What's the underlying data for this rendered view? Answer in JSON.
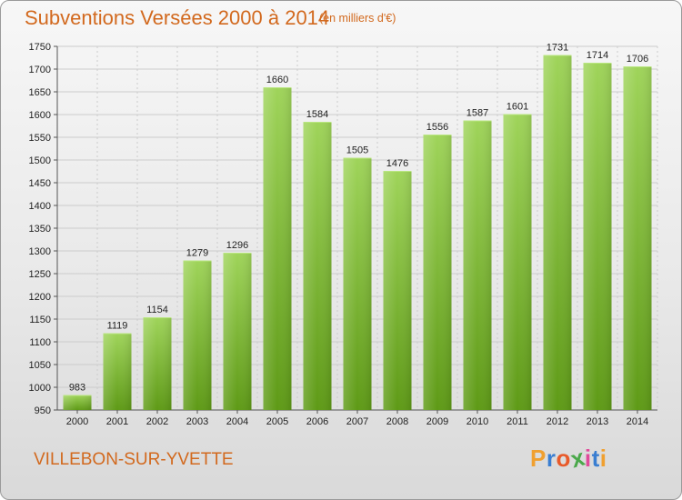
{
  "title": "Subventions Versées 2000 à 2014",
  "subtitle": "(en milliers d'€)",
  "commune": "VILLEBON-SUR-YVETTE",
  "brand": {
    "text": "Proxiti",
    "colors": [
      "#f0a030",
      "#3a7ed1",
      "#e85a2a",
      "#4aa84a",
      "#e04a9a",
      "#3a7ed1",
      "#f0a030"
    ]
  },
  "colors": {
    "title": "#d2691e",
    "bar_top": "#9fd45a",
    "bar_bottom": "#5e9a16",
    "grid": "#cccccc"
  },
  "chart_data": {
    "type": "bar",
    "title": "Subventions Versées 2000 à 2014",
    "xlabel": "",
    "ylabel": "",
    "ylim": [
      950,
      1750
    ],
    "yticks": [
      950,
      1000,
      1050,
      1100,
      1150,
      1200,
      1250,
      1300,
      1350,
      1400,
      1450,
      1500,
      1550,
      1600,
      1650,
      1700,
      1750
    ],
    "categories": [
      "2000",
      "2001",
      "2002",
      "2003",
      "2004",
      "2005",
      "2006",
      "2007",
      "2008",
      "2009",
      "2010",
      "2011",
      "2012",
      "2013",
      "2014"
    ],
    "values": [
      983,
      1119,
      1154,
      1279,
      1296,
      1660,
      1584,
      1505,
      1476,
      1556,
      1587,
      1601,
      1731,
      1714,
      1706
    ],
    "grid": true
  }
}
